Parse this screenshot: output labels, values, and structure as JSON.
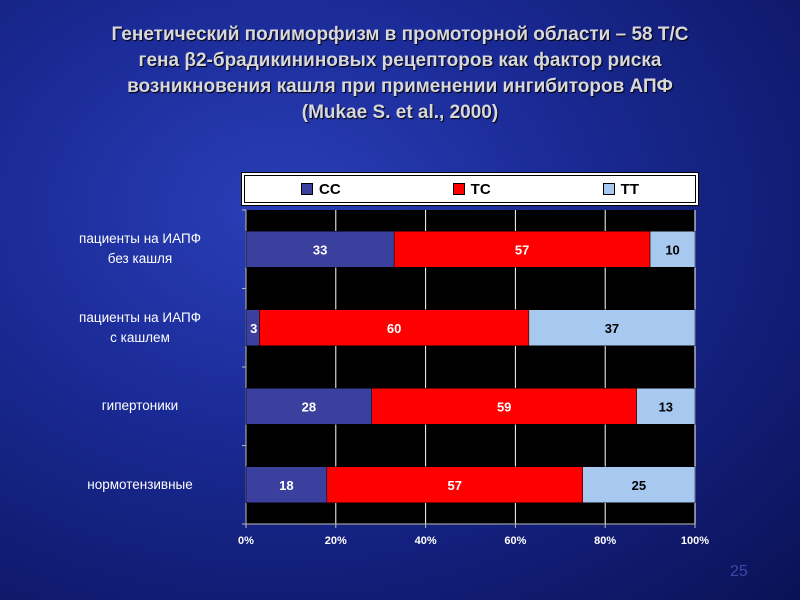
{
  "title_lines": [
    "Генетический полиморфизм в промоторной области – 58 Т/С",
    "гена β2-брадикининовых рецепторов как фактор риска",
    "возникновения кашля при применении ингибиторов АПФ",
    "(Mukae S. et al., 2000)"
  ],
  "page_number": "25",
  "chart_data": {
    "type": "bar",
    "orientation": "horizontal",
    "stacked": "percent",
    "categories": [
      [
        "пациенты на ИАПФ",
        "без кашля"
      ],
      [
        "пациенты на ИАПФ",
        "с кашлем"
      ],
      [
        "гипертоники"
      ],
      [
        "нормотензивные"
      ]
    ],
    "series": [
      {
        "name": "CC",
        "color": "#3b3f9e",
        "values": [
          33,
          3,
          28,
          18
        ]
      },
      {
        "name": "TC",
        "color": "#ff0000",
        "values": [
          57,
          60,
          59,
          57
        ]
      },
      {
        "name": "TT",
        "color": "#a7c9ef",
        "values": [
          10,
          37,
          13,
          25
        ]
      }
    ],
    "xlim": [
      0,
      100
    ],
    "xticks": [
      "0%",
      "20%",
      "40%",
      "60%",
      "80%",
      "100%"
    ],
    "grid": true,
    "legend_position": "top"
  }
}
